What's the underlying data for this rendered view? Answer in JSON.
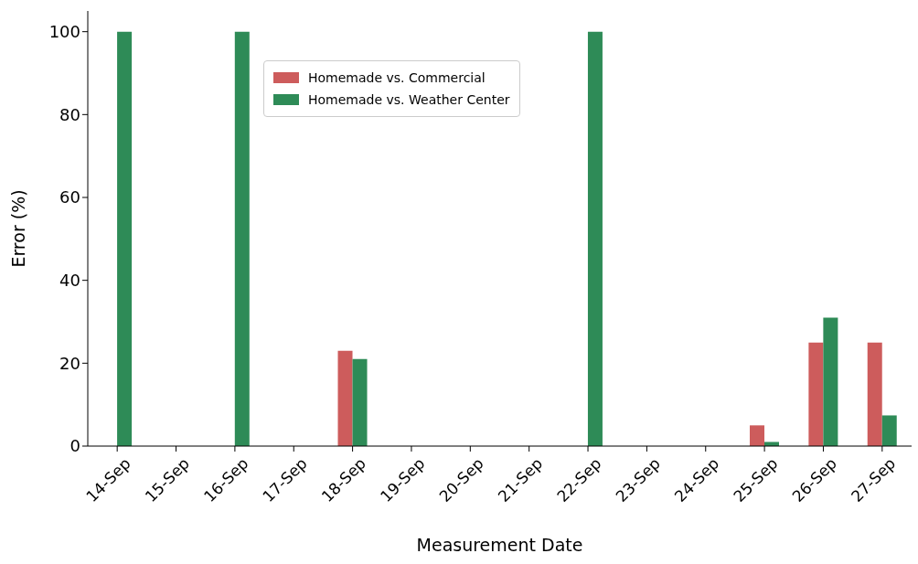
{
  "chart_data": {
    "type": "bar",
    "xlabel": "Measurement Date",
    "ylabel": "Error (%)",
    "categories": [
      "14-Sep",
      "15-Sep",
      "16-Sep",
      "17-Sep",
      "18-Sep",
      "19-Sep",
      "20-Sep",
      "21-Sep",
      "22-Sep",
      "23-Sep",
      "24-Sep",
      "25-Sep",
      "26-Sep",
      "27-Sep"
    ],
    "series": [
      {
        "name": "Homemade vs. Commercial",
        "color": "#cd5c5c",
        "values": [
          0,
          0,
          0,
          0,
          23,
          0,
          0,
          0,
          0,
          0,
          0,
          5,
          25,
          25
        ]
      },
      {
        "name": "Homemade vs. Weather Center",
        "color": "#2e8b57",
        "values": [
          100,
          0,
          100,
          0,
          21,
          0,
          0,
          0,
          100,
          0,
          0,
          1,
          31,
          7.4
        ]
      }
    ],
    "ylim": [
      0,
      105
    ],
    "yticks": [
      0,
      20,
      40,
      60,
      80,
      100
    ],
    "grid": false,
    "legend": "top"
  }
}
